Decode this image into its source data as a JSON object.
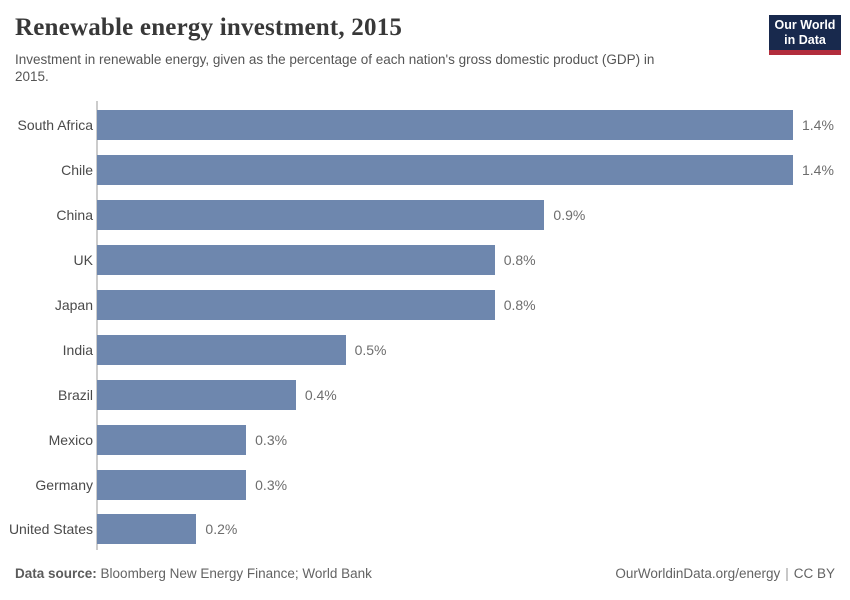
{
  "header": {
    "title": "Renewable energy investment, 2015",
    "subtitle_line1": "Investment in renewable energy, given as the percentage of each nation's gross domestic product (GDP) in",
    "subtitle_line2": "2015.",
    "logo": {
      "line1": "Our World",
      "line2": "in Data"
    }
  },
  "chart_data": {
    "type": "bar",
    "orientation": "horizontal",
    "title": "Renewable energy investment, 2015",
    "subtitle": "Investment in renewable energy, given as the percentage of each nation's gross domestic product (GDP) in 2015.",
    "categories": [
      "South Africa",
      "Chile",
      "China",
      "UK",
      "Japan",
      "India",
      "Brazil",
      "Mexico",
      "Germany",
      "United States"
    ],
    "values": [
      1.4,
      1.4,
      0.9,
      0.8,
      0.8,
      0.5,
      0.4,
      0.3,
      0.3,
      0.2
    ],
    "value_labels": [
      "1.4%",
      "1.4%",
      "0.9%",
      "0.8%",
      "0.8%",
      "0.5%",
      "0.4%",
      "0.3%",
      "0.3%",
      "0.2%"
    ],
    "unit": "%",
    "xlim": [
      0,
      1.4
    ],
    "grid": false,
    "legend": "none",
    "bar_color": "#6e87ae"
  },
  "footer": {
    "datasource_label": "Data source:",
    "datasource_value": "Bloomberg New Energy Finance; World Bank",
    "link": "OurWorldinData.org/energy",
    "separator": "|",
    "license": "CC BY"
  },
  "colors": {
    "bar": "#6e87ae",
    "axis_line": "#cccccc",
    "title_text": "#383838",
    "subtitle_text": "#555555",
    "country_label": "#4a4a4a",
    "value_label": "#6d6d6d",
    "logo_background": "#18294d",
    "logo_accent": "#b22d3c",
    "background": "#ffffff"
  }
}
